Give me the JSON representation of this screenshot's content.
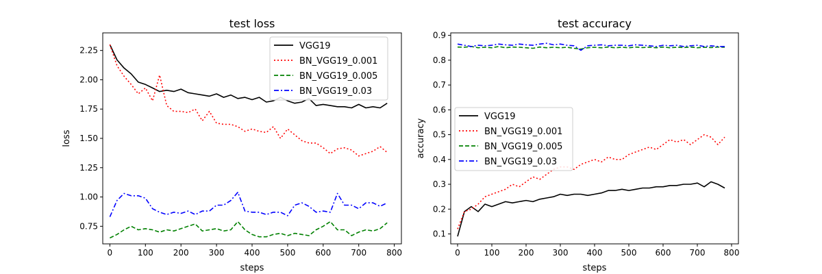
{
  "chart_data": [
    {
      "type": "line",
      "title": "test loss",
      "xlabel": "steps",
      "ylabel": "loss",
      "xlim": [
        -20,
        820
      ],
      "ylim": [
        0.6,
        2.4
      ],
      "xticks": [
        "0",
        "100",
        "200",
        "300",
        "400",
        "500",
        "600",
        "700",
        "800"
      ],
      "yticks": [
        "0.75",
        "1.00",
        "1.25",
        "1.50",
        "1.75",
        "2.00",
        "2.25"
      ],
      "grid": false,
      "legend": "top-right",
      "series": [
        {
          "name": "VGG19",
          "color": "#000000",
          "dash": "solid",
          "x": [
            0,
            20,
            40,
            60,
            80,
            100,
            120,
            140,
            160,
            180,
            200,
            220,
            240,
            260,
            280,
            300,
            320,
            340,
            360,
            380,
            400,
            420,
            440,
            460,
            480,
            500,
            520,
            540,
            560,
            580,
            600,
            620,
            640,
            660,
            680,
            700,
            720,
            740,
            760,
            780
          ],
          "y": [
            2.3,
            2.17,
            2.1,
            2.05,
            1.98,
            1.96,
            1.93,
            1.9,
            1.91,
            1.9,
            1.92,
            1.89,
            1.88,
            1.87,
            1.86,
            1.88,
            1.85,
            1.87,
            1.84,
            1.85,
            1.83,
            1.85,
            1.81,
            1.82,
            1.85,
            1.82,
            1.8,
            1.81,
            1.84,
            1.78,
            1.79,
            1.78,
            1.77,
            1.77,
            1.76,
            1.79,
            1.76,
            1.77,
            1.76,
            1.8
          ]
        },
        {
          "name": "BN_VGG19_0.001",
          "color": "#ff0000",
          "dash": "dotted",
          "x": [
            0,
            20,
            40,
            60,
            80,
            100,
            120,
            140,
            160,
            180,
            200,
            220,
            240,
            260,
            280,
            300,
            320,
            340,
            360,
            380,
            400,
            420,
            440,
            460,
            480,
            500,
            520,
            540,
            560,
            580,
            600,
            620,
            640,
            660,
            680,
            700,
            720,
            740,
            760,
            780
          ],
          "y": [
            2.3,
            2.12,
            2.03,
            1.96,
            1.88,
            1.93,
            1.82,
            2.04,
            1.78,
            1.73,
            1.73,
            1.72,
            1.75,
            1.65,
            1.73,
            1.63,
            1.62,
            1.62,
            1.6,
            1.56,
            1.58,
            1.56,
            1.55,
            1.6,
            1.5,
            1.58,
            1.53,
            1.48,
            1.46,
            1.46,
            1.42,
            1.37,
            1.41,
            1.42,
            1.4,
            1.35,
            1.37,
            1.39,
            1.43,
            1.38
          ]
        },
        {
          "name": "BN_VGG19_0.005",
          "color": "#008000",
          "dash": "dashed",
          "x": [
            0,
            20,
            40,
            60,
            80,
            100,
            120,
            140,
            160,
            180,
            200,
            220,
            240,
            260,
            280,
            300,
            320,
            340,
            360,
            380,
            400,
            420,
            440,
            460,
            480,
            500,
            520,
            540,
            560,
            580,
            600,
            620,
            640,
            660,
            680,
            700,
            720,
            740,
            760,
            780
          ],
          "y": [
            0.65,
            0.68,
            0.72,
            0.75,
            0.72,
            0.73,
            0.72,
            0.7,
            0.72,
            0.71,
            0.73,
            0.75,
            0.77,
            0.71,
            0.72,
            0.73,
            0.71,
            0.72,
            0.79,
            0.72,
            0.68,
            0.66,
            0.66,
            0.68,
            0.69,
            0.67,
            0.69,
            0.68,
            0.67,
            0.72,
            0.75,
            0.79,
            0.72,
            0.72,
            0.67,
            0.7,
            0.72,
            0.71,
            0.73,
            0.78
          ]
        },
        {
          "name": "BN_VGG19_0.03",
          "color": "#0000ff",
          "dash": "dashdot",
          "x": [
            0,
            20,
            40,
            60,
            80,
            100,
            120,
            140,
            160,
            180,
            200,
            220,
            240,
            260,
            280,
            300,
            320,
            340,
            360,
            380,
            400,
            420,
            440,
            460,
            480,
            500,
            520,
            540,
            560,
            580,
            600,
            620,
            640,
            660,
            680,
            700,
            720,
            740,
            760,
            780
          ],
          "y": [
            0.83,
            0.97,
            1.03,
            1.01,
            1.01,
            0.99,
            0.9,
            0.87,
            0.85,
            0.87,
            0.86,
            0.88,
            0.85,
            0.88,
            0.88,
            0.93,
            0.93,
            0.97,
            1.04,
            0.88,
            0.87,
            0.87,
            0.85,
            0.87,
            0.87,
            0.84,
            0.93,
            0.95,
            0.92,
            0.87,
            0.88,
            0.87,
            1.03,
            0.93,
            0.93,
            0.9,
            0.95,
            0.95,
            0.92,
            0.95
          ]
        }
      ]
    },
    {
      "type": "line",
      "title": "test accuracy",
      "xlabel": "steps",
      "ylabel": "accuracy",
      "xlim": [
        -20,
        820
      ],
      "ylim": [
        0.06,
        0.91
      ],
      "xticks": [
        "0",
        "100",
        "200",
        "300",
        "400",
        "500",
        "600",
        "700",
        "800"
      ],
      "yticks": [
        "0.1",
        "0.2",
        "0.3",
        "0.4",
        "0.5",
        "0.6",
        "0.7",
        "0.8",
        "0.9"
      ],
      "grid": false,
      "legend": "center-left",
      "series": [
        {
          "name": "VGG19",
          "color": "#000000",
          "dash": "solid",
          "x": [
            0,
            20,
            40,
            60,
            80,
            100,
            120,
            140,
            160,
            180,
            200,
            220,
            240,
            260,
            280,
            300,
            320,
            340,
            360,
            380,
            400,
            420,
            440,
            460,
            480,
            500,
            520,
            540,
            560,
            580,
            600,
            620,
            640,
            660,
            680,
            700,
            720,
            740,
            760,
            780
          ],
          "y": [
            0.09,
            0.19,
            0.21,
            0.19,
            0.22,
            0.21,
            0.22,
            0.23,
            0.225,
            0.23,
            0.235,
            0.23,
            0.24,
            0.245,
            0.25,
            0.26,
            0.255,
            0.26,
            0.26,
            0.255,
            0.26,
            0.265,
            0.275,
            0.275,
            0.28,
            0.275,
            0.28,
            0.285,
            0.285,
            0.29,
            0.29,
            0.295,
            0.295,
            0.3,
            0.3,
            0.305,
            0.29,
            0.31,
            0.3,
            0.285
          ]
        },
        {
          "name": "BN_VGG19_0.001",
          "color": "#ff0000",
          "dash": "dotted",
          "x": [
            0,
            20,
            40,
            60,
            80,
            100,
            120,
            140,
            160,
            180,
            200,
            220,
            240,
            260,
            280,
            300,
            320,
            340,
            360,
            380,
            400,
            420,
            440,
            460,
            480,
            500,
            520,
            540,
            560,
            580,
            600,
            620,
            640,
            660,
            680,
            700,
            720,
            740,
            760,
            780
          ],
          "y": [
            0.12,
            0.19,
            0.2,
            0.22,
            0.25,
            0.26,
            0.27,
            0.28,
            0.3,
            0.29,
            0.31,
            0.33,
            0.32,
            0.34,
            0.36,
            0.37,
            0.37,
            0.36,
            0.38,
            0.39,
            0.4,
            0.39,
            0.41,
            0.4,
            0.4,
            0.42,
            0.43,
            0.44,
            0.45,
            0.44,
            0.46,
            0.48,
            0.47,
            0.48,
            0.46,
            0.48,
            0.5,
            0.49,
            0.46,
            0.49
          ]
        },
        {
          "name": "BN_VGG19_0.005",
          "color": "#008000",
          "dash": "dashed",
          "x": [
            0,
            20,
            40,
            60,
            80,
            100,
            120,
            140,
            160,
            180,
            200,
            220,
            240,
            260,
            280,
            300,
            320,
            340,
            360,
            380,
            400,
            420,
            440,
            460,
            480,
            500,
            520,
            540,
            560,
            580,
            600,
            620,
            640,
            660,
            680,
            700,
            720,
            740,
            760,
            780
          ],
          "y": [
            0.853,
            0.852,
            0.855,
            0.85,
            0.852,
            0.85,
            0.855,
            0.85,
            0.853,
            0.852,
            0.85,
            0.848,
            0.853,
            0.85,
            0.852,
            0.85,
            0.852,
            0.848,
            0.845,
            0.85,
            0.852,
            0.85,
            0.853,
            0.85,
            0.852,
            0.85,
            0.853,
            0.851,
            0.852,
            0.85,
            0.853,
            0.85,
            0.852,
            0.851,
            0.853,
            0.85,
            0.852,
            0.851,
            0.853,
            0.852
          ]
        },
        {
          "name": "BN_VGG19_0.03",
          "color": "#0000ff",
          "dash": "dashdot",
          "x": [
            0,
            20,
            40,
            60,
            80,
            100,
            120,
            140,
            160,
            180,
            200,
            220,
            240,
            260,
            280,
            300,
            320,
            340,
            360,
            380,
            400,
            420,
            440,
            460,
            480,
            500,
            520,
            540,
            560,
            580,
            600,
            620,
            640,
            660,
            680,
            700,
            720,
            740,
            760,
            780
          ],
          "y": [
            0.865,
            0.86,
            0.855,
            0.86,
            0.858,
            0.86,
            0.865,
            0.862,
            0.86,
            0.865,
            0.862,
            0.86,
            0.865,
            0.868,
            0.862,
            0.865,
            0.86,
            0.858,
            0.84,
            0.858,
            0.86,
            0.862,
            0.858,
            0.86,
            0.86,
            0.858,
            0.862,
            0.86,
            0.858,
            0.855,
            0.86,
            0.858,
            0.86,
            0.855,
            0.858,
            0.86,
            0.855,
            0.858,
            0.855,
            0.855
          ]
        }
      ]
    }
  ]
}
